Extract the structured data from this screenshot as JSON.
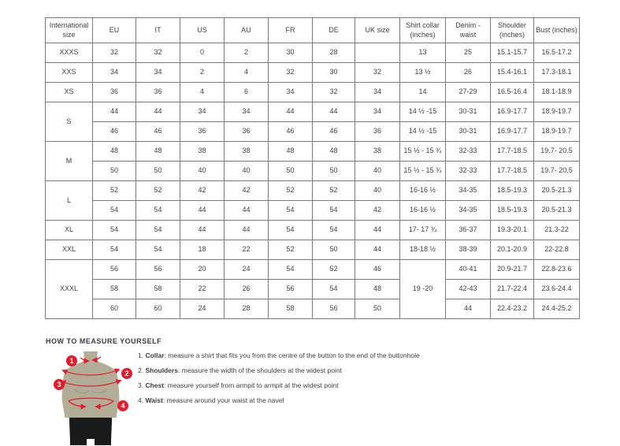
{
  "colors": {
    "accent_red": "#e31b2d",
    "mannequin_body": "#b2ad97",
    "mannequin_shorts": "#1a1a1a",
    "table_border": "#7a7a7a",
    "text": "#3e3e3e"
  },
  "size_table": {
    "columns": [
      "International size",
      "EU",
      "IT",
      "US",
      "AU",
      "FR",
      "DE",
      "UK size",
      "Shirt collar (inches)",
      "Denim - waist",
      "Shoulder (inches)",
      "Bust (inches)"
    ],
    "rows": [
      {
        "cells": [
          {
            "t": "XXXS",
            "head": true
          },
          {
            "t": "32"
          },
          {
            "t": "32"
          },
          {
            "t": "0"
          },
          {
            "t": "2"
          },
          {
            "t": "30"
          },
          {
            "t": "28"
          },
          {
            "t": ""
          },
          {
            "t": "13"
          },
          {
            "t": "25"
          },
          {
            "t": "15.1-15.7"
          },
          {
            "t": "16.5-17.2"
          }
        ]
      },
      {
        "cells": [
          {
            "t": "XXS",
            "head": true
          },
          {
            "t": "34"
          },
          {
            "t": "34"
          },
          {
            "t": "2"
          },
          {
            "t": "4"
          },
          {
            "t": "32"
          },
          {
            "t": "30"
          },
          {
            "t": "32"
          },
          {
            "t": "13 ½"
          },
          {
            "t": "26"
          },
          {
            "t": "15.4-16.1"
          },
          {
            "t": "17.3-18.1"
          }
        ]
      },
      {
        "cells": [
          {
            "t": "XS",
            "head": true
          },
          {
            "t": "36"
          },
          {
            "t": "36"
          },
          {
            "t": "4"
          },
          {
            "t": "6"
          },
          {
            "t": "34"
          },
          {
            "t": "32"
          },
          {
            "t": "34"
          },
          {
            "t": "14"
          },
          {
            "t": "27-29"
          },
          {
            "t": "16.5-16.4"
          },
          {
            "t": "18.1-18.9"
          }
        ]
      },
      {
        "cells": [
          {
            "t": "S",
            "head": true,
            "rs": 2
          },
          {
            "t": "44"
          },
          {
            "t": "44"
          },
          {
            "t": "34"
          },
          {
            "t": "34"
          },
          {
            "t": "44"
          },
          {
            "t": "44"
          },
          {
            "t": "34"
          },
          {
            "t": "14 ½ -15"
          },
          {
            "t": "30-31"
          },
          {
            "t": "16.9-17.7"
          },
          {
            "t": "18.9-19.7"
          }
        ]
      },
      {
        "cells": [
          {
            "t": "46"
          },
          {
            "t": "46"
          },
          {
            "t": "36"
          },
          {
            "t": "36"
          },
          {
            "t": "46"
          },
          {
            "t": "46"
          },
          {
            "t": "36"
          },
          {
            "t": "14 ½ -15"
          },
          {
            "t": "30-31"
          },
          {
            "t": "16.9-17.7"
          },
          {
            "t": "18.9-19.7"
          }
        ]
      },
      {
        "cells": [
          {
            "t": "M",
            "head": true,
            "rs": 2
          },
          {
            "t": "48"
          },
          {
            "t": "48"
          },
          {
            "t": "38"
          },
          {
            "t": "38"
          },
          {
            "t": "48"
          },
          {
            "t": "48"
          },
          {
            "t": "38"
          },
          {
            "t": "15 ½ - 15 ¾"
          },
          {
            "t": "32-33"
          },
          {
            "t": "17.7-18.5"
          },
          {
            "t": "19.7- 20.5"
          }
        ]
      },
      {
        "cells": [
          {
            "t": "50"
          },
          {
            "t": "50"
          },
          {
            "t": "40"
          },
          {
            "t": "40"
          },
          {
            "t": "50"
          },
          {
            "t": "50"
          },
          {
            "t": "40"
          },
          {
            "t": "15 ½ - 15 ¾"
          },
          {
            "t": "32-33"
          },
          {
            "t": "17.7-18.5"
          },
          {
            "t": "19.7- 20.5"
          }
        ]
      },
      {
        "cells": [
          {
            "t": "L",
            "head": true,
            "rs": 2
          },
          {
            "t": "52"
          },
          {
            "t": "52"
          },
          {
            "t": "42"
          },
          {
            "t": "42"
          },
          {
            "t": "52"
          },
          {
            "t": "52"
          },
          {
            "t": "40"
          },
          {
            "t": "16-16 ½"
          },
          {
            "t": "34-35"
          },
          {
            "t": "18.5-19.3"
          },
          {
            "t": "20.5-21.3"
          }
        ]
      },
      {
        "cells": [
          {
            "t": "54"
          },
          {
            "t": "54"
          },
          {
            "t": "44"
          },
          {
            "t": "44"
          },
          {
            "t": "54"
          },
          {
            "t": "54"
          },
          {
            "t": "42"
          },
          {
            "t": "16-16 ½"
          },
          {
            "t": "34-35"
          },
          {
            "t": "18.5-19.3"
          },
          {
            "t": "20.5-21.3"
          }
        ]
      },
      {
        "cells": [
          {
            "t": "XL",
            "head": true
          },
          {
            "t": "54"
          },
          {
            "t": "54"
          },
          {
            "t": "44"
          },
          {
            "t": "44"
          },
          {
            "t": "54"
          },
          {
            "t": "54"
          },
          {
            "t": "44"
          },
          {
            "t": "17- 17 ¾"
          },
          {
            "t": "36-37"
          },
          {
            "t": "19.3-20.1"
          },
          {
            "t": "21.3-22"
          }
        ]
      },
      {
        "cells": [
          {
            "t": "XXL",
            "head": true
          },
          {
            "t": "54"
          },
          {
            "t": "54"
          },
          {
            "t": "18"
          },
          {
            "t": "22"
          },
          {
            "t": "52"
          },
          {
            "t": "50"
          },
          {
            "t": "44"
          },
          {
            "t": "18-18 ½"
          },
          {
            "t": "38-39"
          },
          {
            "t": "20.1-20.9"
          },
          {
            "t": "22-22.8"
          }
        ]
      },
      {
        "cells": [
          {
            "t": "XXXL",
            "head": true,
            "rs": 3
          },
          {
            "t": "56"
          },
          {
            "t": "56"
          },
          {
            "t": "20"
          },
          {
            "t": "24"
          },
          {
            "t": "54"
          },
          {
            "t": "52"
          },
          {
            "t": "46"
          },
          {
            "t": "19 -20",
            "rs": 3
          },
          {
            "t": "40-41"
          },
          {
            "t": "20.9-21.7"
          },
          {
            "t": "22.8-23.6"
          }
        ]
      },
      {
        "cells": [
          {
            "t": "58"
          },
          {
            "t": "58"
          },
          {
            "t": "22"
          },
          {
            "t": "26"
          },
          {
            "t": "56"
          },
          {
            "t": "54"
          },
          {
            "t": "48"
          },
          {
            "t": "42-43"
          },
          {
            "t": "21.7-22.4"
          },
          {
            "t": "23.6-24.4"
          }
        ]
      },
      {
        "cells": [
          {
            "t": "60"
          },
          {
            "t": "60"
          },
          {
            "t": "24"
          },
          {
            "t": "28"
          },
          {
            "t": "58"
          },
          {
            "t": "56"
          },
          {
            "t": "50"
          },
          {
            "t": "44"
          },
          {
            "t": "22.4-23.2"
          },
          {
            "t": "24.4-25.2"
          }
        ]
      }
    ]
  },
  "measure": {
    "heading": "HOW TO MEASURE YOURSELF",
    "badges": [
      "1",
      "2",
      "3",
      "4"
    ],
    "items": [
      {
        "num": "1",
        "label": "Collar",
        "text": "measure a shirt that fits you from the centre of the button to the end of the buttonhole"
      },
      {
        "num": "2",
        "label": "Shoulders",
        "text": "measure the width of the shoulders at the widest point"
      },
      {
        "num": "3",
        "label": "Chest",
        "text": "measure yourself from armpit to armpit at the widest point"
      },
      {
        "num": "4",
        "label": "Waist",
        "text": "measure around your waist at the navel"
      }
    ]
  }
}
